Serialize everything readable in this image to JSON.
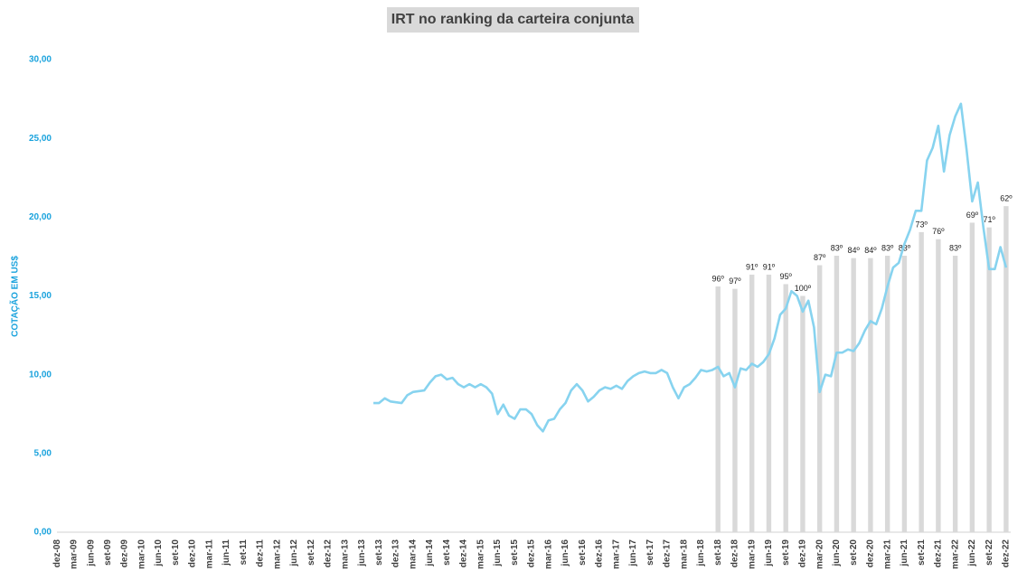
{
  "chart_data": {
    "type": "combo",
    "title": "IRT no ranking da carteira conjunta",
    "y_label": "COTAÇÃO EM US$",
    "categories": [
      "dez-08",
      null,
      null,
      "mar-09",
      null,
      null,
      "jun-09",
      null,
      null,
      "set-09",
      null,
      null,
      "dez-09",
      null,
      null,
      "mar-10",
      null,
      null,
      "jun-10",
      null,
      null,
      "set-10",
      null,
      null,
      "dez-10",
      null,
      null,
      "mar-11",
      null,
      null,
      "jun-11",
      null,
      null,
      "set-11",
      null,
      null,
      "dez-11",
      null,
      null,
      "mar-12",
      null,
      null,
      "jun-12",
      null,
      null,
      "set-12",
      null,
      null,
      "dez-12",
      null,
      null,
      "mar-13",
      null,
      null,
      "jun-13",
      null,
      null,
      "set-13",
      null,
      null,
      "dez-13",
      null,
      null,
      "mar-14",
      null,
      null,
      "jun-14",
      null,
      null,
      "set-14",
      null,
      null,
      "dez-14",
      null,
      null,
      "mar-15",
      null,
      null,
      "jun-15",
      null,
      null,
      "set-15",
      null,
      null,
      "dez-15",
      null,
      null,
      "mar-16",
      null,
      null,
      "jun-16",
      null,
      null,
      "set-16",
      null,
      null,
      "dez-16",
      null,
      null,
      "mar-17",
      null,
      null,
      "jun-17",
      null,
      null,
      "set-17",
      null,
      null,
      "dez-17",
      null,
      null,
      "mar-18",
      null,
      null,
      "jun-18",
      null,
      null,
      "set-18",
      null,
      null,
      "dez-18",
      null,
      null,
      "mar-19",
      null,
      null,
      "jun-19",
      null,
      null,
      "set-19",
      null,
      null,
      "dez-19",
      null,
      null,
      "mar-20",
      null,
      null,
      "jun-20",
      null,
      null,
      "set-20",
      null,
      null,
      "dez-20",
      null,
      null,
      "mar-21",
      null,
      null,
      "jun-21",
      null,
      null,
      "set-21",
      null,
      null,
      "dez-21",
      null,
      null,
      "mar-22",
      null,
      null,
      "jun-22",
      null,
      null,
      "set-22",
      null,
      null,
      "dez-22"
    ],
    "ylim": [
      0,
      30
    ],
    "yticks": [
      {
        "value": 0,
        "label": "0,00"
      },
      {
        "value": 5,
        "label": "5,00"
      },
      {
        "value": 10,
        "label": "10,00"
      },
      {
        "value": 15,
        "label": "15,00"
      },
      {
        "value": 20,
        "label": "20,00"
      },
      {
        "value": 25,
        "label": "25,00"
      },
      {
        "value": 30,
        "label": "30,00"
      }
    ],
    "y2lim": [
      200,
      0
    ],
    "grid": false,
    "series": [
      {
        "type": "bar",
        "axis": "y2",
        "color": "#d9d9d9",
        "values": [
          null,
          null,
          null,
          null,
          null,
          null,
          null,
          null,
          null,
          null,
          null,
          null,
          null,
          null,
          null,
          null,
          null,
          null,
          null,
          null,
          null,
          null,
          null,
          null,
          null,
          null,
          null,
          null,
          null,
          null,
          null,
          null,
          null,
          null,
          null,
          null,
          null,
          null,
          null,
          null,
          null,
          null,
          null,
          null,
          null,
          null,
          null,
          null,
          null,
          null,
          null,
          null,
          null,
          null,
          null,
          null,
          null,
          null,
          null,
          null,
          null,
          null,
          null,
          null,
          null,
          null,
          null,
          null,
          null,
          null,
          null,
          null,
          null,
          null,
          null,
          null,
          null,
          null,
          null,
          null,
          null,
          null,
          null,
          null,
          null,
          null,
          null,
          null,
          null,
          null,
          null,
          null,
          null,
          null,
          null,
          null,
          null,
          null,
          null,
          null,
          null,
          null,
          null,
          null,
          null,
          null,
          null,
          null,
          null,
          null,
          null,
          null,
          null,
          null,
          null,
          null,
          null,
          96,
          null,
          null,
          97,
          null,
          null,
          91,
          null,
          null,
          91,
          null,
          null,
          95,
          null,
          null,
          100,
          null,
          null,
          87,
          null,
          null,
          83,
          null,
          null,
          84,
          null,
          null,
          84,
          null,
          null,
          83,
          null,
          null,
          83,
          null,
          null,
          73,
          null,
          null,
          76,
          null,
          null,
          83,
          null,
          null,
          69,
          null,
          null,
          71,
          null,
          null,
          62
        ],
        "value_labels": [
          null,
          null,
          null,
          null,
          null,
          null,
          null,
          null,
          null,
          null,
          null,
          null,
          null,
          null,
          null,
          null,
          null,
          null,
          null,
          null,
          null,
          null,
          null,
          null,
          null,
          null,
          null,
          null,
          null,
          null,
          null,
          null,
          null,
          null,
          null,
          null,
          null,
          null,
          null,
          null,
          null,
          null,
          null,
          null,
          null,
          null,
          null,
          null,
          null,
          null,
          null,
          null,
          null,
          null,
          null,
          null,
          null,
          null,
          null,
          null,
          null,
          null,
          null,
          null,
          null,
          null,
          null,
          null,
          null,
          null,
          null,
          null,
          null,
          null,
          null,
          null,
          null,
          null,
          null,
          null,
          null,
          null,
          null,
          null,
          null,
          null,
          null,
          null,
          null,
          null,
          null,
          null,
          null,
          null,
          null,
          null,
          null,
          null,
          null,
          null,
          null,
          null,
          null,
          null,
          null,
          null,
          null,
          null,
          null,
          null,
          null,
          null,
          null,
          null,
          null,
          null,
          null,
          "96º",
          null,
          null,
          "97º",
          null,
          null,
          "91º",
          null,
          null,
          "91º",
          null,
          null,
          "95º",
          null,
          null,
          "100º",
          null,
          null,
          "87º",
          null,
          null,
          "83º",
          null,
          null,
          "84º",
          null,
          null,
          "84º",
          null,
          null,
          "83º",
          null,
          null,
          "83º",
          null,
          null,
          "73º",
          null,
          null,
          "76º",
          null,
          null,
          "83º",
          null,
          null,
          "69º",
          null,
          null,
          "71º",
          null,
          null,
          "62º"
        ]
      },
      {
        "type": "line",
        "color": "#87d3ef",
        "values": [
          null,
          null,
          null,
          null,
          null,
          null,
          null,
          null,
          null,
          null,
          null,
          null,
          null,
          null,
          null,
          null,
          null,
          null,
          null,
          null,
          null,
          null,
          null,
          null,
          null,
          null,
          null,
          null,
          null,
          null,
          null,
          null,
          null,
          null,
          null,
          null,
          null,
          null,
          null,
          null,
          null,
          null,
          null,
          null,
          null,
          null,
          null,
          null,
          null,
          null,
          null,
          null,
          null,
          null,
          null,
          null,
          8.2,
          8.2,
          8.5,
          8.3,
          8.25,
          8.2,
          8.7,
          8.9,
          8.95,
          9.0,
          9.5,
          9.9,
          10.0,
          9.7,
          9.8,
          9.4,
          9.2,
          9.4,
          9.2,
          9.4,
          9.2,
          8.8,
          7.5,
          8.1,
          7.4,
          7.2,
          7.8,
          7.8,
          7.5,
          6.8,
          6.4,
          7.1,
          7.2,
          7.8,
          8.2,
          9.0,
          9.4,
          9.0,
          8.3,
          8.6,
          9.0,
          9.2,
          9.1,
          9.3,
          9.1,
          9.6,
          9.9,
          10.1,
          10.2,
          10.1,
          10.1,
          10.3,
          10.1,
          9.2,
          8.5,
          9.2,
          9.4,
          9.8,
          10.3,
          10.2,
          10.3,
          10.5,
          9.9,
          10.1,
          9.2,
          10.4,
          10.3,
          10.7,
          10.5,
          10.8,
          11.3,
          12.3,
          13.8,
          14.2,
          15.3,
          15.0,
          14.0,
          14.7,
          13.0,
          8.9,
          10.0,
          9.9,
          11.4,
          11.4,
          11.6,
          11.5,
          12.0,
          12.8,
          13.4,
          13.2,
          14.2,
          15.6,
          16.8,
          17.1,
          18.3,
          19.2,
          20.4,
          20.4,
          23.6,
          24.4,
          25.8,
          22.9,
          25.2,
          26.4,
          27.2,
          24.3,
          21.0,
          22.2,
          19.3,
          16.7,
          16.7,
          18.1,
          16.8
        ]
      }
    ]
  }
}
